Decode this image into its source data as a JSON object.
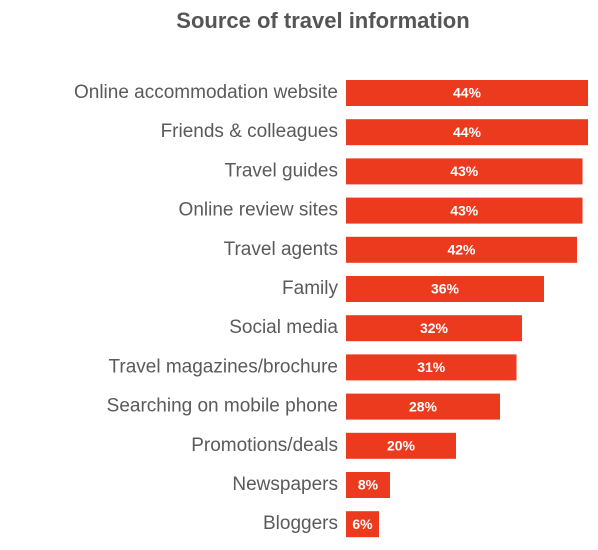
{
  "chart_data": {
    "type": "bar",
    "orientation": "horizontal",
    "title": "Source of travel information",
    "categories": [
      "Online accommodation website",
      "Friends & colleagues",
      "Travel guides",
      "Online review sites",
      "Travel agents",
      "Family",
      "Social media",
      "Travel magazines/brochure",
      "Searching on mobile phone",
      "Promotions/deals",
      "Newspapers",
      "Bloggers"
    ],
    "values": [
      44,
      44,
      43,
      43,
      42,
      36,
      32,
      31,
      28,
      20,
      8,
      6
    ],
    "value_labels": [
      "44%",
      "44%",
      "43%",
      "43%",
      "42%",
      "36%",
      "32%",
      "31%",
      "28%",
      "20%",
      "8%",
      "6%"
    ],
    "color": "#ec3a1e"
  }
}
